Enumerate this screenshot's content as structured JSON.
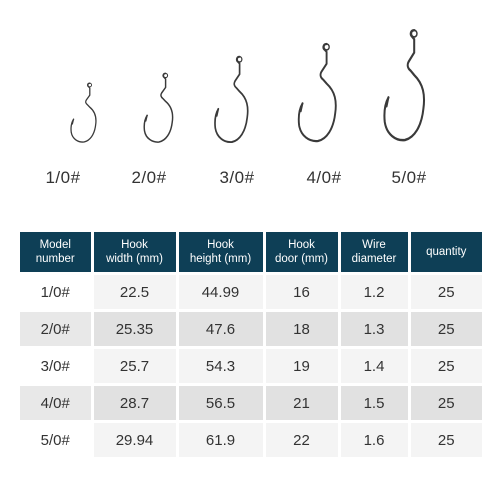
{
  "hooks": [
    {
      "label": "1/0#"
    },
    {
      "label": "2/0#"
    },
    {
      "label": "3/0#"
    },
    {
      "label": "4/0#"
    },
    {
      "label": "5/0#"
    }
  ],
  "table": {
    "headers": [
      {
        "line1": "Model",
        "line2": "number"
      },
      {
        "line1": "Hook",
        "line2": "width (mm)"
      },
      {
        "line1": "Hook",
        "line2": "height (mm)"
      },
      {
        "line1": "Hook",
        "line2": "door (mm)"
      },
      {
        "line1": "Wire",
        "line2": "diameter"
      },
      {
        "line1": "quantity",
        "line2": ""
      }
    ],
    "rows": [
      [
        "1/0#",
        "22.5",
        "44.99",
        "16",
        "1.2",
        "25"
      ],
      [
        "2/0#",
        "25.35",
        "47.6",
        "18",
        "1.3",
        "25"
      ],
      [
        "3/0#",
        "25.7",
        "54.3",
        "19",
        "1.4",
        "25"
      ],
      [
        "4/0#",
        "28.7",
        "56.5",
        "21",
        "1.5",
        "25"
      ],
      [
        "5/0#",
        "29.94",
        "61.9",
        "22",
        "1.6",
        "25"
      ]
    ]
  },
  "colors": {
    "header_bg": "#0e3f56",
    "hook_metal": "#3a3a3a"
  },
  "icons": [
    "fishing-hook-icon"
  ]
}
